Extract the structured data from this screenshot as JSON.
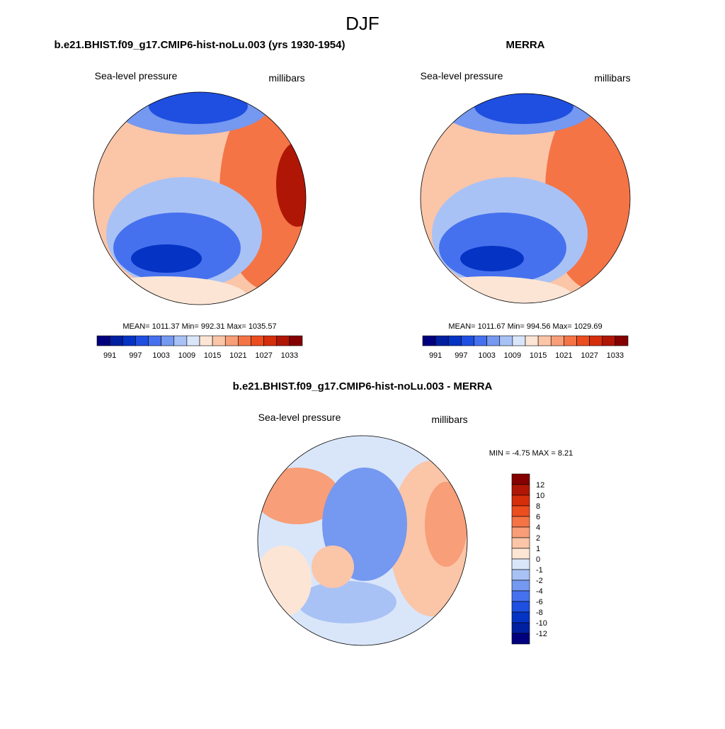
{
  "title": "DJF",
  "panels": [
    {
      "title": "b.e21.BHIST.f09_g17.CMIP6-hist-noLu.003 (yrs 1930-1954)",
      "left_label": "Sea-level pressure",
      "right_label": "millibars",
      "stats": "MEAN= 1011.37  Min= 992.31  Max= 1035.57",
      "colorbar_labels": [
        "991",
        "997",
        "1003",
        "1009",
        "1015",
        "1021",
        "1027",
        "1033"
      ]
    },
    {
      "title": "MERRA",
      "left_label": "Sea-level pressure",
      "right_label": "millibars",
      "stats": "MEAN= 1011.67  Min= 994.56  Max= 1029.69",
      "colorbar_labels": [
        "991",
        "997",
        "1003",
        "1009",
        "1015",
        "1021",
        "1027",
        "1033"
      ]
    },
    {
      "title": "b.e21.BHIST.f09_g17.CMIP6-hist-noLu.003 - MERRA",
      "left_label": "Sea-level pressure",
      "right_label": "millibars",
      "stats": "MIN =  -4.75 MAX =   8.21",
      "colorbar_labels": [
        "12",
        "10",
        "8",
        "6",
        "4",
        "2",
        "1",
        "0",
        "-1",
        "-2",
        "-4",
        "-6",
        "-8",
        "-10",
        "-12"
      ]
    }
  ],
  "colorbar_colors": [
    "#00007f",
    "#0020a0",
    "#0533c4",
    "#1f4fe0",
    "#4671ee",
    "#7598f0",
    "#a9c2f5",
    "#d9e6fa",
    "#fde5d5",
    "#fbc5a8",
    "#f89e78",
    "#f47446",
    "#ec4d1f",
    "#d52e0b",
    "#b01605",
    "#850000"
  ]
}
